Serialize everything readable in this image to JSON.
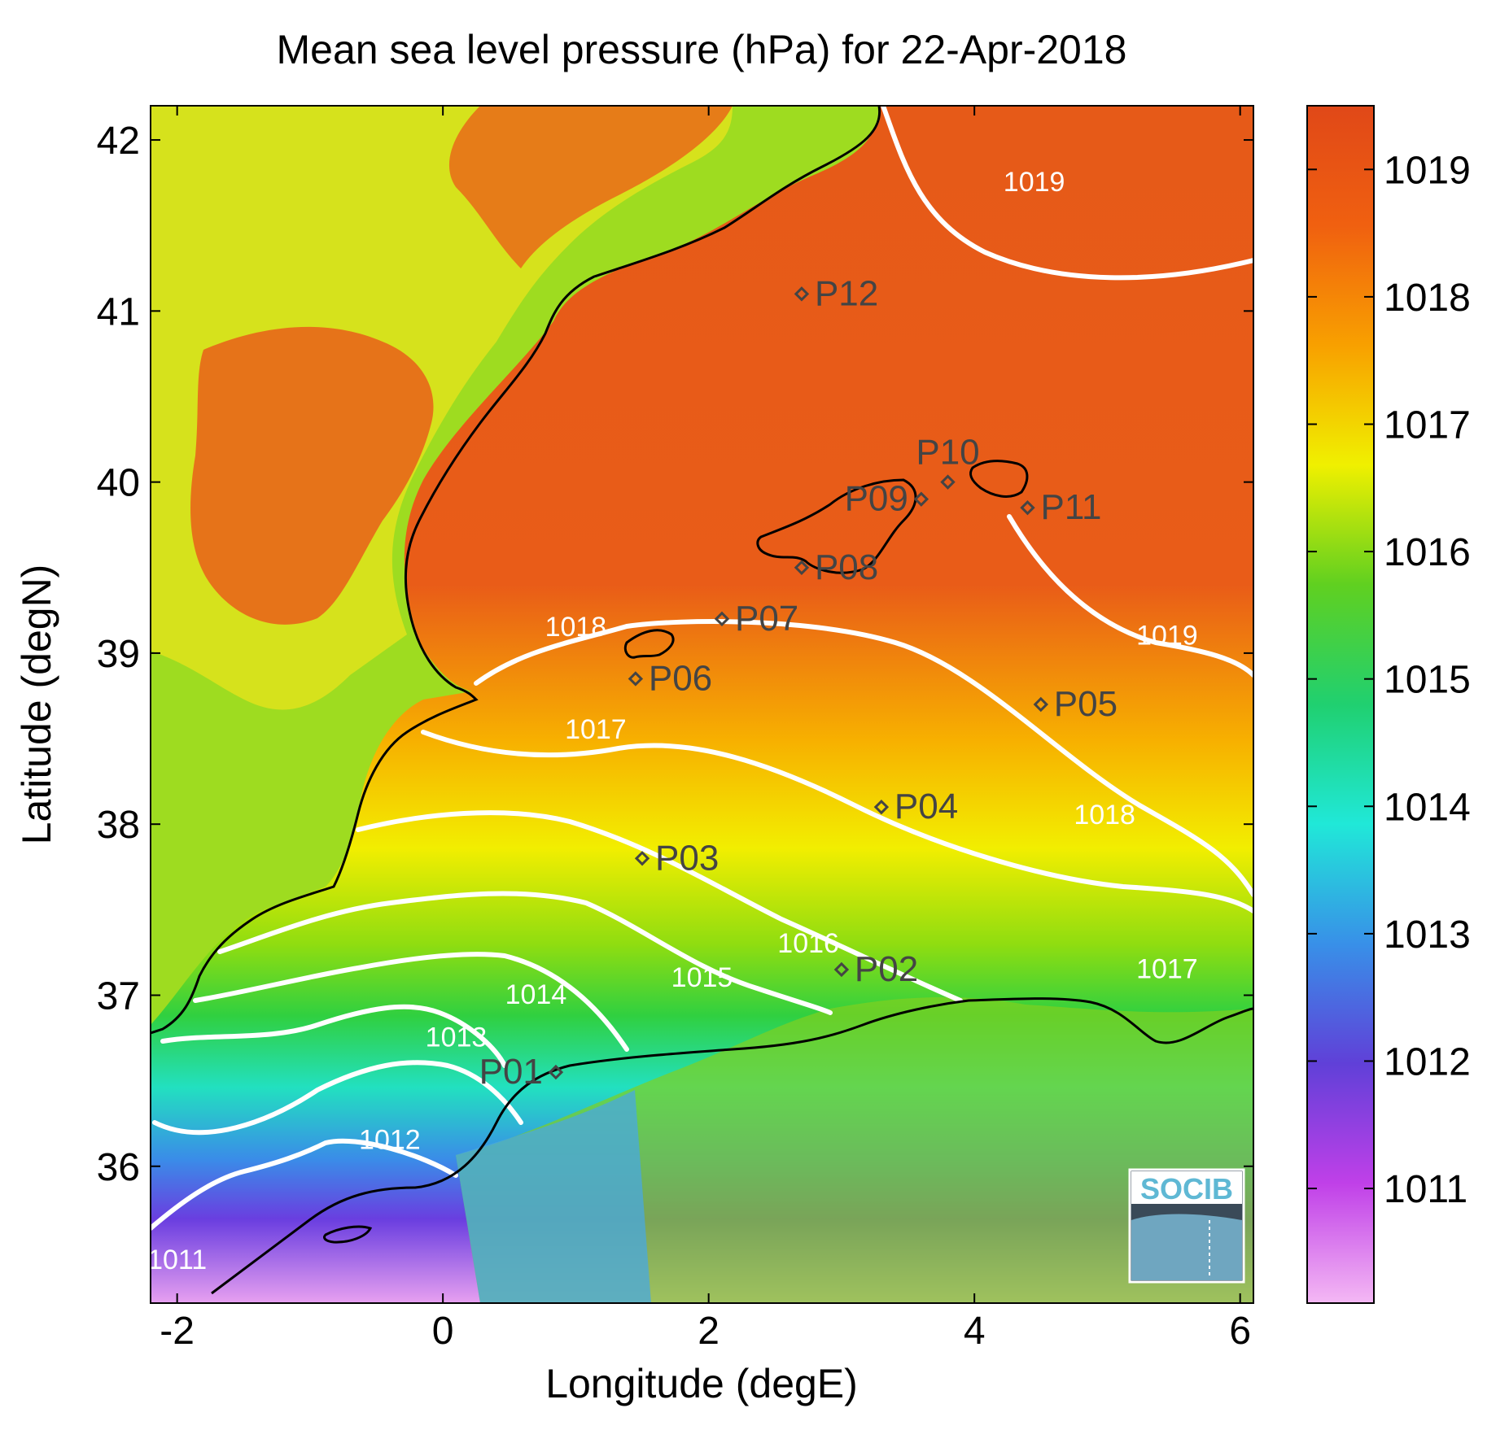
{
  "title": "Mean sea level pressure (hPa) for 22-Apr-2018",
  "xlabel": "Longitude (degE)",
  "ylabel": "Latitude (degN)",
  "logo": "SOCIB",
  "chart_data": {
    "type": "heatmap",
    "title": "Mean sea level pressure (hPa) for 22-Apr-2018",
    "xlabel": "Longitude (degE)",
    "ylabel": "Latitude (degN)",
    "xlim": [
      -2.2,
      6.1
    ],
    "ylim": [
      35.2,
      42.2
    ],
    "x_ticks": [
      -2,
      0,
      2,
      4,
      6
    ],
    "y_ticks": [
      36,
      37,
      38,
      39,
      40,
      41,
      42
    ],
    "colorbar": {
      "range": [
        1010.1,
        1019.5
      ],
      "ticks": [
        1011,
        1012,
        1013,
        1014,
        1015,
        1016,
        1017,
        1018,
        1019
      ],
      "colors": [
        "#f4b8f4",
        "#c040e8",
        "#6040d8",
        "#3890e8",
        "#20e8d8",
        "#20d070",
        "#60d020",
        "#f0f000",
        "#f8a000",
        "#f06010",
        "#e04818"
      ]
    },
    "contour_labels": [
      {
        "text": "1011",
        "lon": -2.0,
        "lat": 35.4
      },
      {
        "text": "1012",
        "lon": -0.4,
        "lat": 36.1
      },
      {
        "text": "1013",
        "lon": 0.1,
        "lat": 36.7
      },
      {
        "text": "1014",
        "lon": 0.7,
        "lat": 36.95
      },
      {
        "text": "1015",
        "lon": 1.95,
        "lat": 37.05
      },
      {
        "text": "1016",
        "lon": 2.75,
        "lat": 37.25
      },
      {
        "text": "1017",
        "lon": 1.15,
        "lat": 38.5
      },
      {
        "text": "1017",
        "lon": 5.45,
        "lat": 37.1
      },
      {
        "text": "1018",
        "lon": 1.0,
        "lat": 39.1
      },
      {
        "text": "1018",
        "lon": 4.98,
        "lat": 38.0
      },
      {
        "text": "1019",
        "lon": 4.45,
        "lat": 41.7
      },
      {
        "text": "1019",
        "lon": 5.45,
        "lat": 39.05
      }
    ],
    "points": [
      {
        "name": "P01",
        "lon": 0.85,
        "lat": 36.55,
        "label_side": "left"
      },
      {
        "name": "P02",
        "lon": 3.0,
        "lat": 37.15,
        "label_side": "right"
      },
      {
        "name": "P03",
        "lon": 1.5,
        "lat": 37.8,
        "label_side": "right"
      },
      {
        "name": "P04",
        "lon": 3.3,
        "lat": 38.1,
        "label_side": "right"
      },
      {
        "name": "P05",
        "lon": 4.5,
        "lat": 38.7,
        "label_side": "right"
      },
      {
        "name": "P06",
        "lon": 1.45,
        "lat": 38.85,
        "label_side": "right"
      },
      {
        "name": "P07",
        "lon": 2.1,
        "lat": 39.2,
        "label_side": "right"
      },
      {
        "name": "P08",
        "lon": 2.7,
        "lat": 39.5,
        "label_side": "right"
      },
      {
        "name": "P09",
        "lon": 3.6,
        "lat": 39.9,
        "label_side": "left"
      },
      {
        "name": "P10",
        "lon": 3.8,
        "lat": 40.0,
        "label_side": "above"
      },
      {
        "name": "P11",
        "lon": 4.4,
        "lat": 39.85,
        "label_side": "right"
      },
      {
        "name": "P12",
        "lon": 2.7,
        "lat": 41.1,
        "label_side": "right"
      }
    ]
  }
}
